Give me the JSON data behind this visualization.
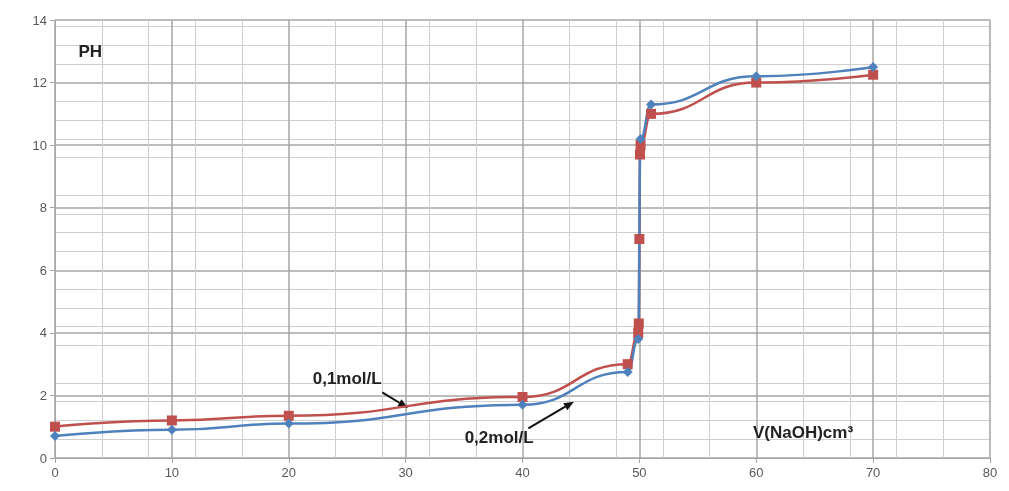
{
  "chart_data": {
    "type": "line",
    "ylabel": "PH",
    "xlabel": "V(NaOH)cm³",
    "xlim": [
      0,
      80
    ],
    "xticks": [
      0,
      10,
      20,
      30,
      40,
      50,
      60,
      70,
      80
    ],
    "ylim": [
      0,
      14
    ],
    "yticks": [
      0,
      2,
      4,
      6,
      8,
      10,
      12,
      14
    ],
    "grid": true,
    "legend": false,
    "series": [
      {
        "name": "0,1mol/L",
        "color": "#c0504d",
        "marker": "square",
        "x": [
          0,
          10,
          20,
          40,
          49,
          49.9,
          49.95,
          50,
          50.05,
          50.1,
          51,
          60,
          70
        ],
        "values": [
          1.0,
          1.2,
          1.35,
          1.95,
          3.0,
          4.0,
          4.3,
          7.0,
          9.7,
          10.0,
          11.0,
          12.0,
          12.25
        ]
      },
      {
        "name": "0,2mol/L",
        "color": "#4f81bd",
        "marker": "diamond",
        "x": [
          0,
          10,
          20,
          40,
          49,
          49.9,
          50.1,
          51,
          60,
          70
        ],
        "values": [
          0.7,
          0.9,
          1.1,
          1.7,
          2.75,
          3.8,
          10.2,
          11.3,
          12.2,
          12.5
        ]
      }
    ]
  }
}
